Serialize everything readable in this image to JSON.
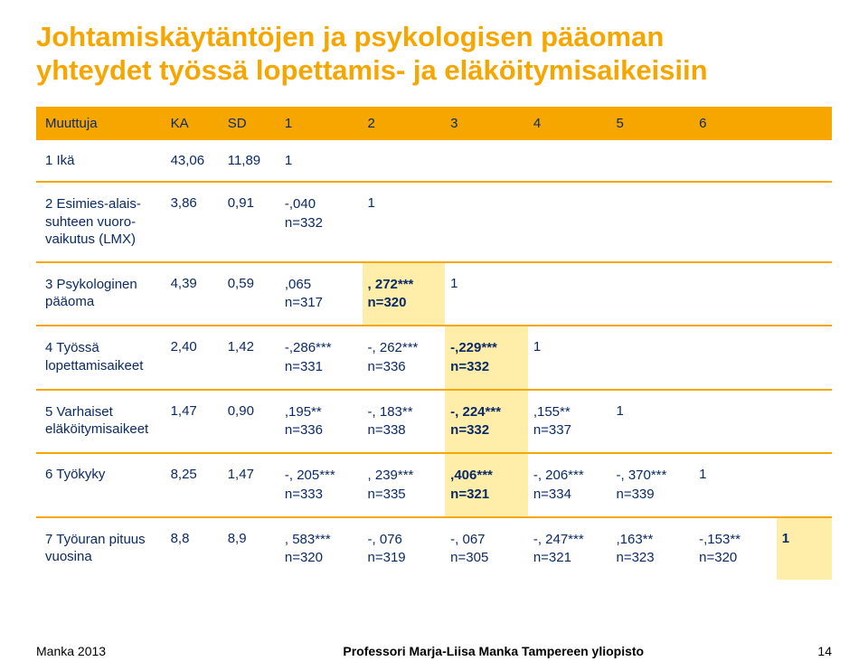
{
  "title_line1": "Johtamiskäytäntöjen ja psykologisen pääoman",
  "title_line2": "yhteydet työssä lopettamis- ja eläköitymisaikeisiin",
  "header": {
    "colors": {
      "bg": "#f7a600",
      "fg": "#0a2a66",
      "highlight_bg": "#ffeeaa"
    },
    "cols": [
      "Muuttuja",
      "KA",
      "SD",
      "1",
      "2",
      "3",
      "4",
      "5",
      "6",
      ""
    ]
  },
  "rows": [
    {
      "label": "1 Ikä",
      "ka": "43,06",
      "sd": "11,89",
      "c1": "1",
      "c2": "",
      "c3": "",
      "c4": "",
      "c5": "",
      "c6": "",
      "c7": ""
    },
    {
      "label_l1": "2 Esimies-alais-",
      "label_l2": "suhteen vuoro-",
      "label_l3": "vaikutus (LMX)",
      "ka": "3,86",
      "sd": "0,91",
      "c1_l1": "-,040",
      "c1_l2": "n=332",
      "c2": "1",
      "c3": "",
      "c4": "",
      "c5": "",
      "c6": "",
      "c7": ""
    },
    {
      "label_l1": "3 Psykologinen",
      "label_l2": "pääoma",
      "ka": "4,39",
      "sd": "0,59",
      "c1_l1": ",065",
      "c1_l2": "n=317",
      "c2_l1": ", 272***",
      "c2_l2": "n=320",
      "c2_hl": true,
      "c3": "1",
      "c4": "",
      "c5": "",
      "c6": "",
      "c7": ""
    },
    {
      "label_l1": "4 Työssä",
      "label_l2": "lopettamisaikeet",
      "ka": "2,40",
      "sd": "1,42",
      "c1_l1": "-,286***",
      "c1_l2": "n=331",
      "c2_l1": "-, 262***",
      "c2_l2": "n=336",
      "c3_l1": "-,229***",
      "c3_l2": "n=332",
      "c3_hl": true,
      "c4": "1",
      "c5": "",
      "c6": "",
      "c7": ""
    },
    {
      "label_l1": "5 Varhaiset",
      "label_l2": "eläköitymisaikeet",
      "ka": "1,47",
      "sd": "0,90",
      "c1_l1": ",195**",
      "c1_l2": "n=336",
      "c2_l1": "-, 183**",
      "c2_l2": "n=338",
      "c3_l1": "-, 224***",
      "c3_l2": "n=332",
      "c3_hl": true,
      "c4_l1": ",155**",
      "c4_l2": "n=337",
      "c5": "1",
      "c6": "",
      "c7": ""
    },
    {
      "label": "6 Työkyky",
      "ka": "8,25",
      "sd": "1,47",
      "c1_l1": "-, 205***",
      "c1_l2": "n=333",
      "c2_l1": ", 239***",
      "c2_l2": "n=335",
      "c3_l1": ",406***",
      "c3_l2": "n=321",
      "c3_hl": true,
      "c4_l1": "-, 206***",
      "c4_l2": "n=334",
      "c5_l1": "-, 370***",
      "c5_l2": "n=339",
      "c6": "1",
      "c7": ""
    },
    {
      "label_l1": "7 Työuran pituus",
      "label_l2": "vuosina",
      "ka": "8,8",
      "sd": "8,9",
      "c1_l1": ", 583***",
      "c1_l2": "n=320",
      "c2_l1": "-, 076",
      "c2_l2": "n=319",
      "c3_l1": "-, 067",
      "c3_l2": "n=305",
      "c4_l1": "-, 247***",
      "c4_l2": "n=321",
      "c5_l1": ",163**",
      "c5_l2": "n=323",
      "c6_l1": "-,153**",
      "c6_l2": "n=320",
      "c7": "1",
      "c7_hl": true
    }
  ],
  "footer": {
    "source": "Manka 2013",
    "center": "Professori Marja-Liisa Manka Tampereen yliopisto",
    "page": "14"
  }
}
